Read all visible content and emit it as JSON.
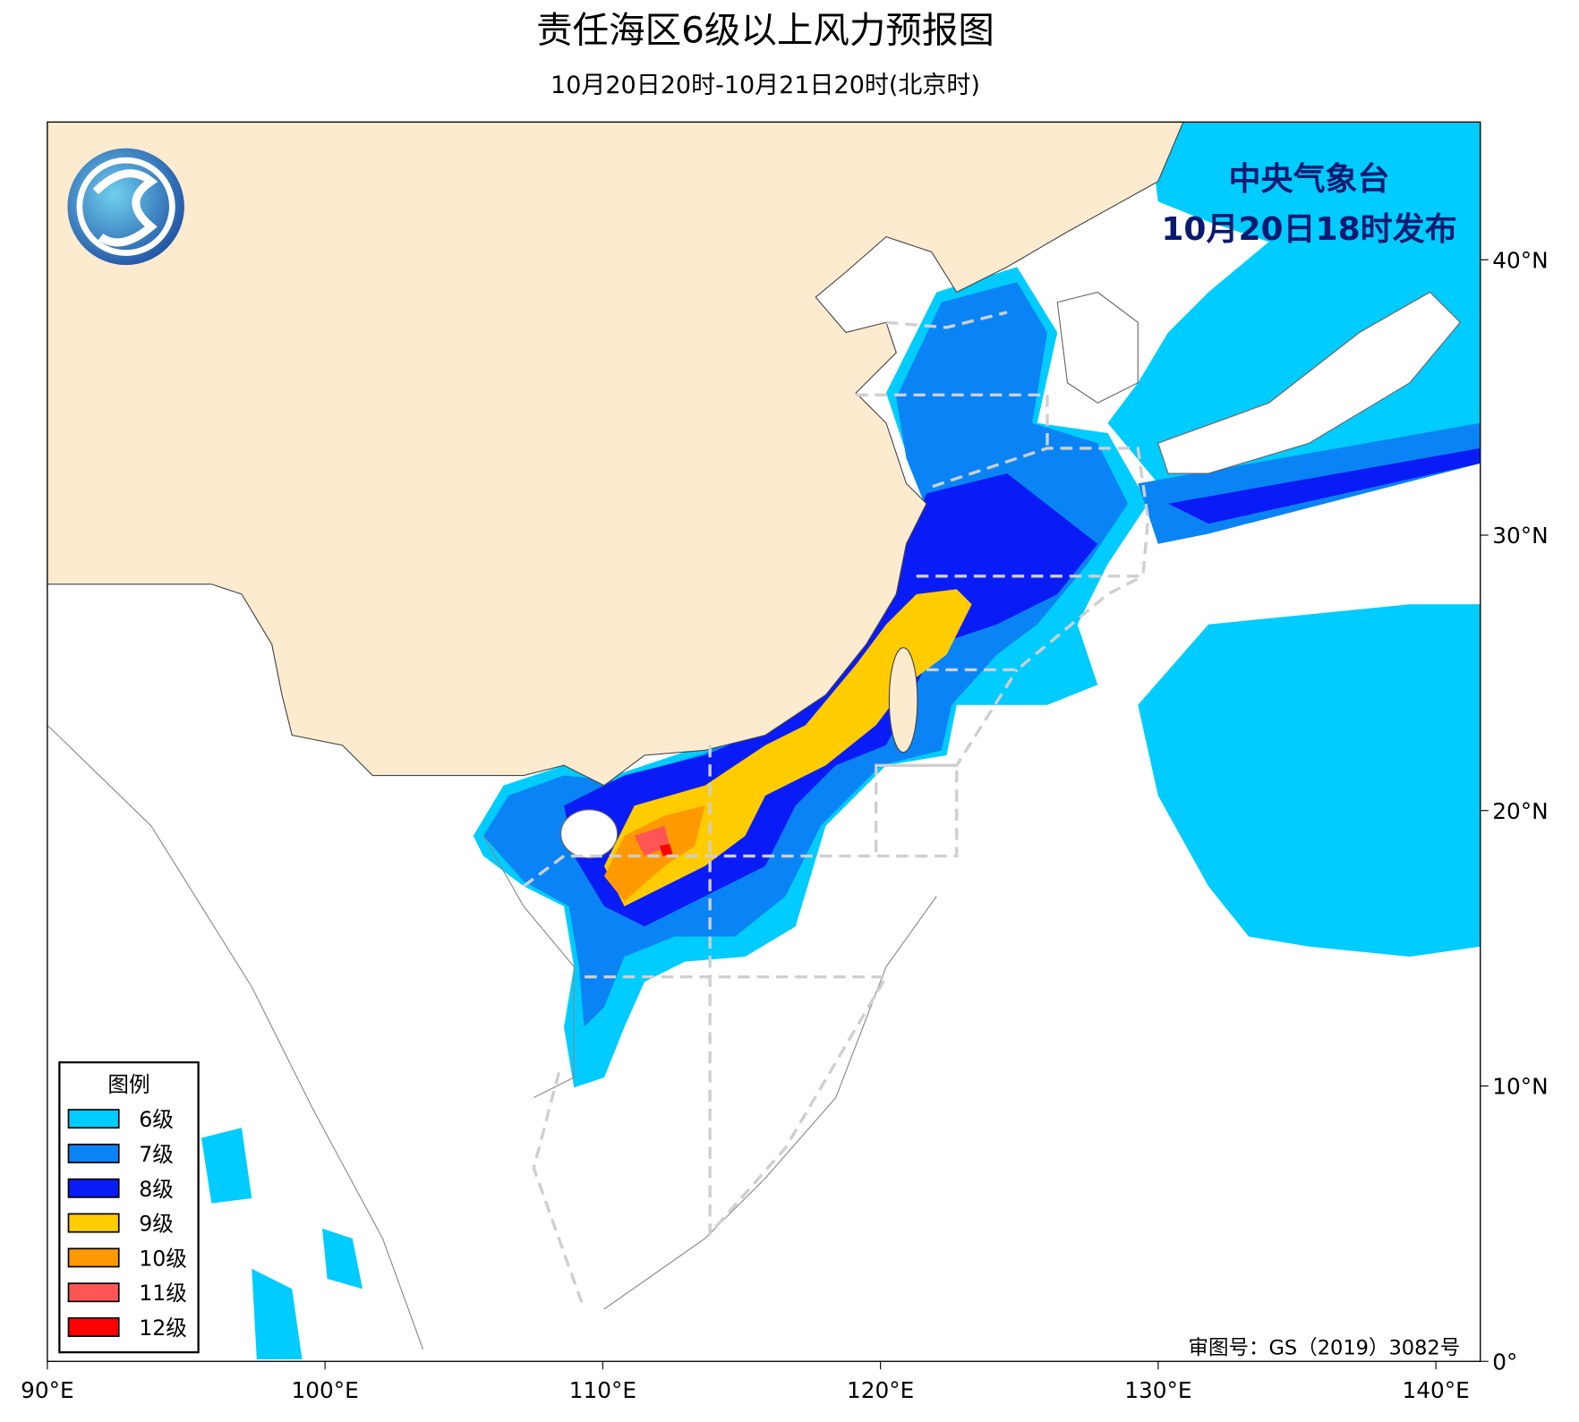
{
  "title": "责任海区6级以上风力预报图",
  "subtitle": "10月20日20时-10月21日20时(北京时)",
  "issuer": [
    "中央气象台",
    "10月20日18时发布"
  ],
  "approval": "审图号：GS（2019）3082号",
  "map": {
    "xlim": [
      90,
      141.6
    ],
    "ylim": [
      0,
      45
    ],
    "xticks": [
      {
        "value": 90,
        "label": "90°E"
      },
      {
        "value": 100,
        "label": "100°E"
      },
      {
        "value": 110,
        "label": "110°E"
      },
      {
        "value": 120,
        "label": "120°E"
      },
      {
        "value": 130,
        "label": "130°E"
      },
      {
        "value": 140,
        "label": "140°E"
      }
    ],
    "yticks": [
      {
        "value": 0,
        "label": "0°"
      },
      {
        "value": 10,
        "label": "10°N"
      },
      {
        "value": 20,
        "label": "20°N"
      },
      {
        "value": 30,
        "label": "30°N"
      },
      {
        "value": 40,
        "label": "40°N"
      }
    ]
  },
  "legend": {
    "title": "图例",
    "items": [
      {
        "label": "6级",
        "color": "#00ccff"
      },
      {
        "label": "7级",
        "color": "#0a84f5"
      },
      {
        "label": "8级",
        "color": "#0a1cf5"
      },
      {
        "label": "9级",
        "color": "#ffcc00"
      },
      {
        "label": "10级",
        "color": "#ff9900"
      },
      {
        "label": "11级",
        "color": "#ff5555"
      },
      {
        "label": "12级",
        "color": "#ff0000"
      }
    ]
  }
}
